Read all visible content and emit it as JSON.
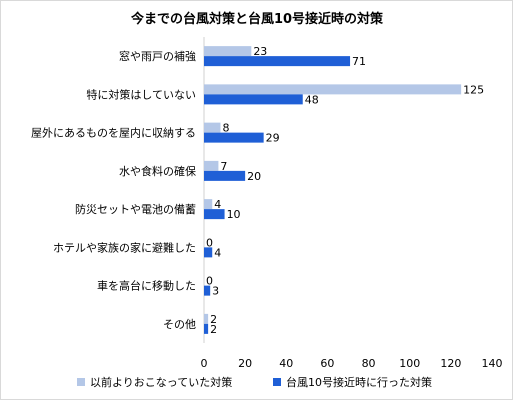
{
  "chart_data": {
    "type": "bar",
    "orientation": "horizontal",
    "title": "今までの台風対策と台風10号接近時の対策",
    "categories": [
      "窓や雨戸の補強",
      "特に対策はしていない",
      "屋外にあるものを屋内に収納する",
      "水や食料の確保",
      "防災セットや電池の備蓄",
      "ホテルや家族の家に避難した",
      "車を高台に移動した",
      "その他"
    ],
    "series": [
      {
        "name": "以前よりおこなっていた対策",
        "values": [
          23,
          125,
          8,
          7,
          4,
          0,
          0,
          2
        ],
        "color": "#b4c7e7"
      },
      {
        "name": "台風10号接近時に行った対策",
        "values": [
          71,
          48,
          29,
          20,
          10,
          4,
          3,
          2
        ],
        "color": "#1f5fd6"
      }
    ],
    "xlim": [
      0,
      140
    ],
    "xticks": [
      0,
      20,
      40,
      60,
      80,
      100,
      120,
      140
    ],
    "xlabel": "",
    "ylabel": "",
    "grid": false,
    "legend_position": "bottom"
  }
}
